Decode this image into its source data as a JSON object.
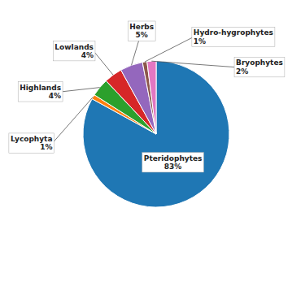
{
  "chart_data": {
    "type": "pie",
    "categories": [
      "Pteridophytes",
      "Lycophyta",
      "Highlands",
      "Lowlands",
      "Herbs",
      "Hydro-hygrophytes",
      "Bryophytes"
    ],
    "values": [
      83,
      1,
      4,
      4,
      5,
      1,
      2
    ],
    "value_labels": [
      "83%",
      "1%",
      "4%",
      "4%",
      "5%",
      "1%",
      "2%"
    ],
    "data_labels": true
  }
}
